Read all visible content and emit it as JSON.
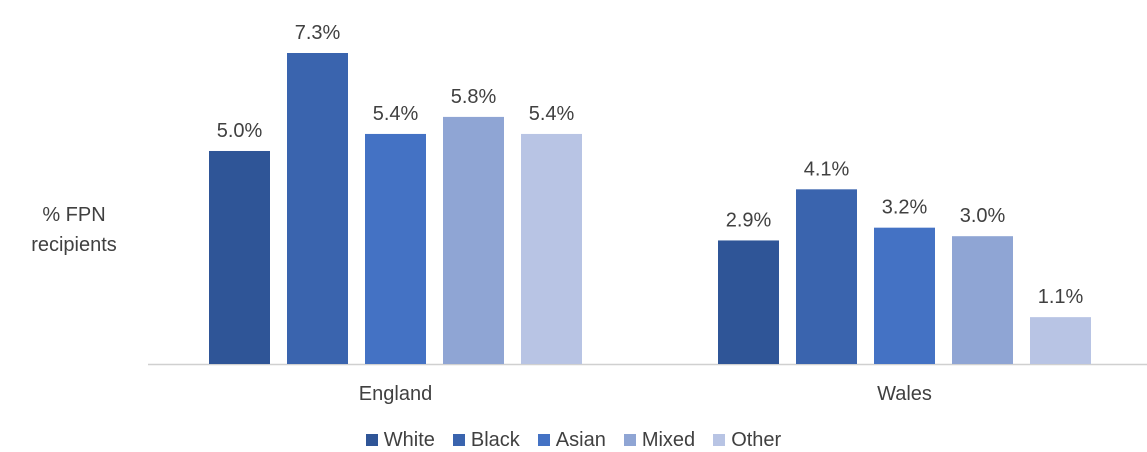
{
  "chart_data": {
    "type": "bar",
    "title": "",
    "xlabel": "",
    "ylabel_lines": [
      "% FPN",
      "recipients"
    ],
    "categories": [
      "England",
      "Wales"
    ],
    "series": [
      {
        "name": "White",
        "color": "#2F5597",
        "values": [
          5.0,
          2.9
        ]
      },
      {
        "name": "Black",
        "color": "#3A64AE",
        "values": [
          7.3,
          4.1
        ]
      },
      {
        "name": "Asian",
        "color": "#4472C4",
        "values": [
          5.4,
          3.2
        ]
      },
      {
        "name": "Mixed",
        "color": "#8FA5D4",
        "values": [
          5.8,
          3.0
        ]
      },
      {
        "name": "Other",
        "color": "#B8C4E4",
        "values": [
          5.4,
          1.1
        ]
      }
    ],
    "data_labels": [
      [
        "5.0%",
        "2.9%"
      ],
      [
        "7.3%",
        "4.1%"
      ],
      [
        "5.4%",
        "3.2%"
      ],
      [
        "5.8%",
        "3.0%"
      ],
      [
        "5.4%",
        "1.1%"
      ]
    ],
    "ylim": [
      0,
      7.3
    ],
    "grid": false,
    "legend_position": "bottom"
  }
}
